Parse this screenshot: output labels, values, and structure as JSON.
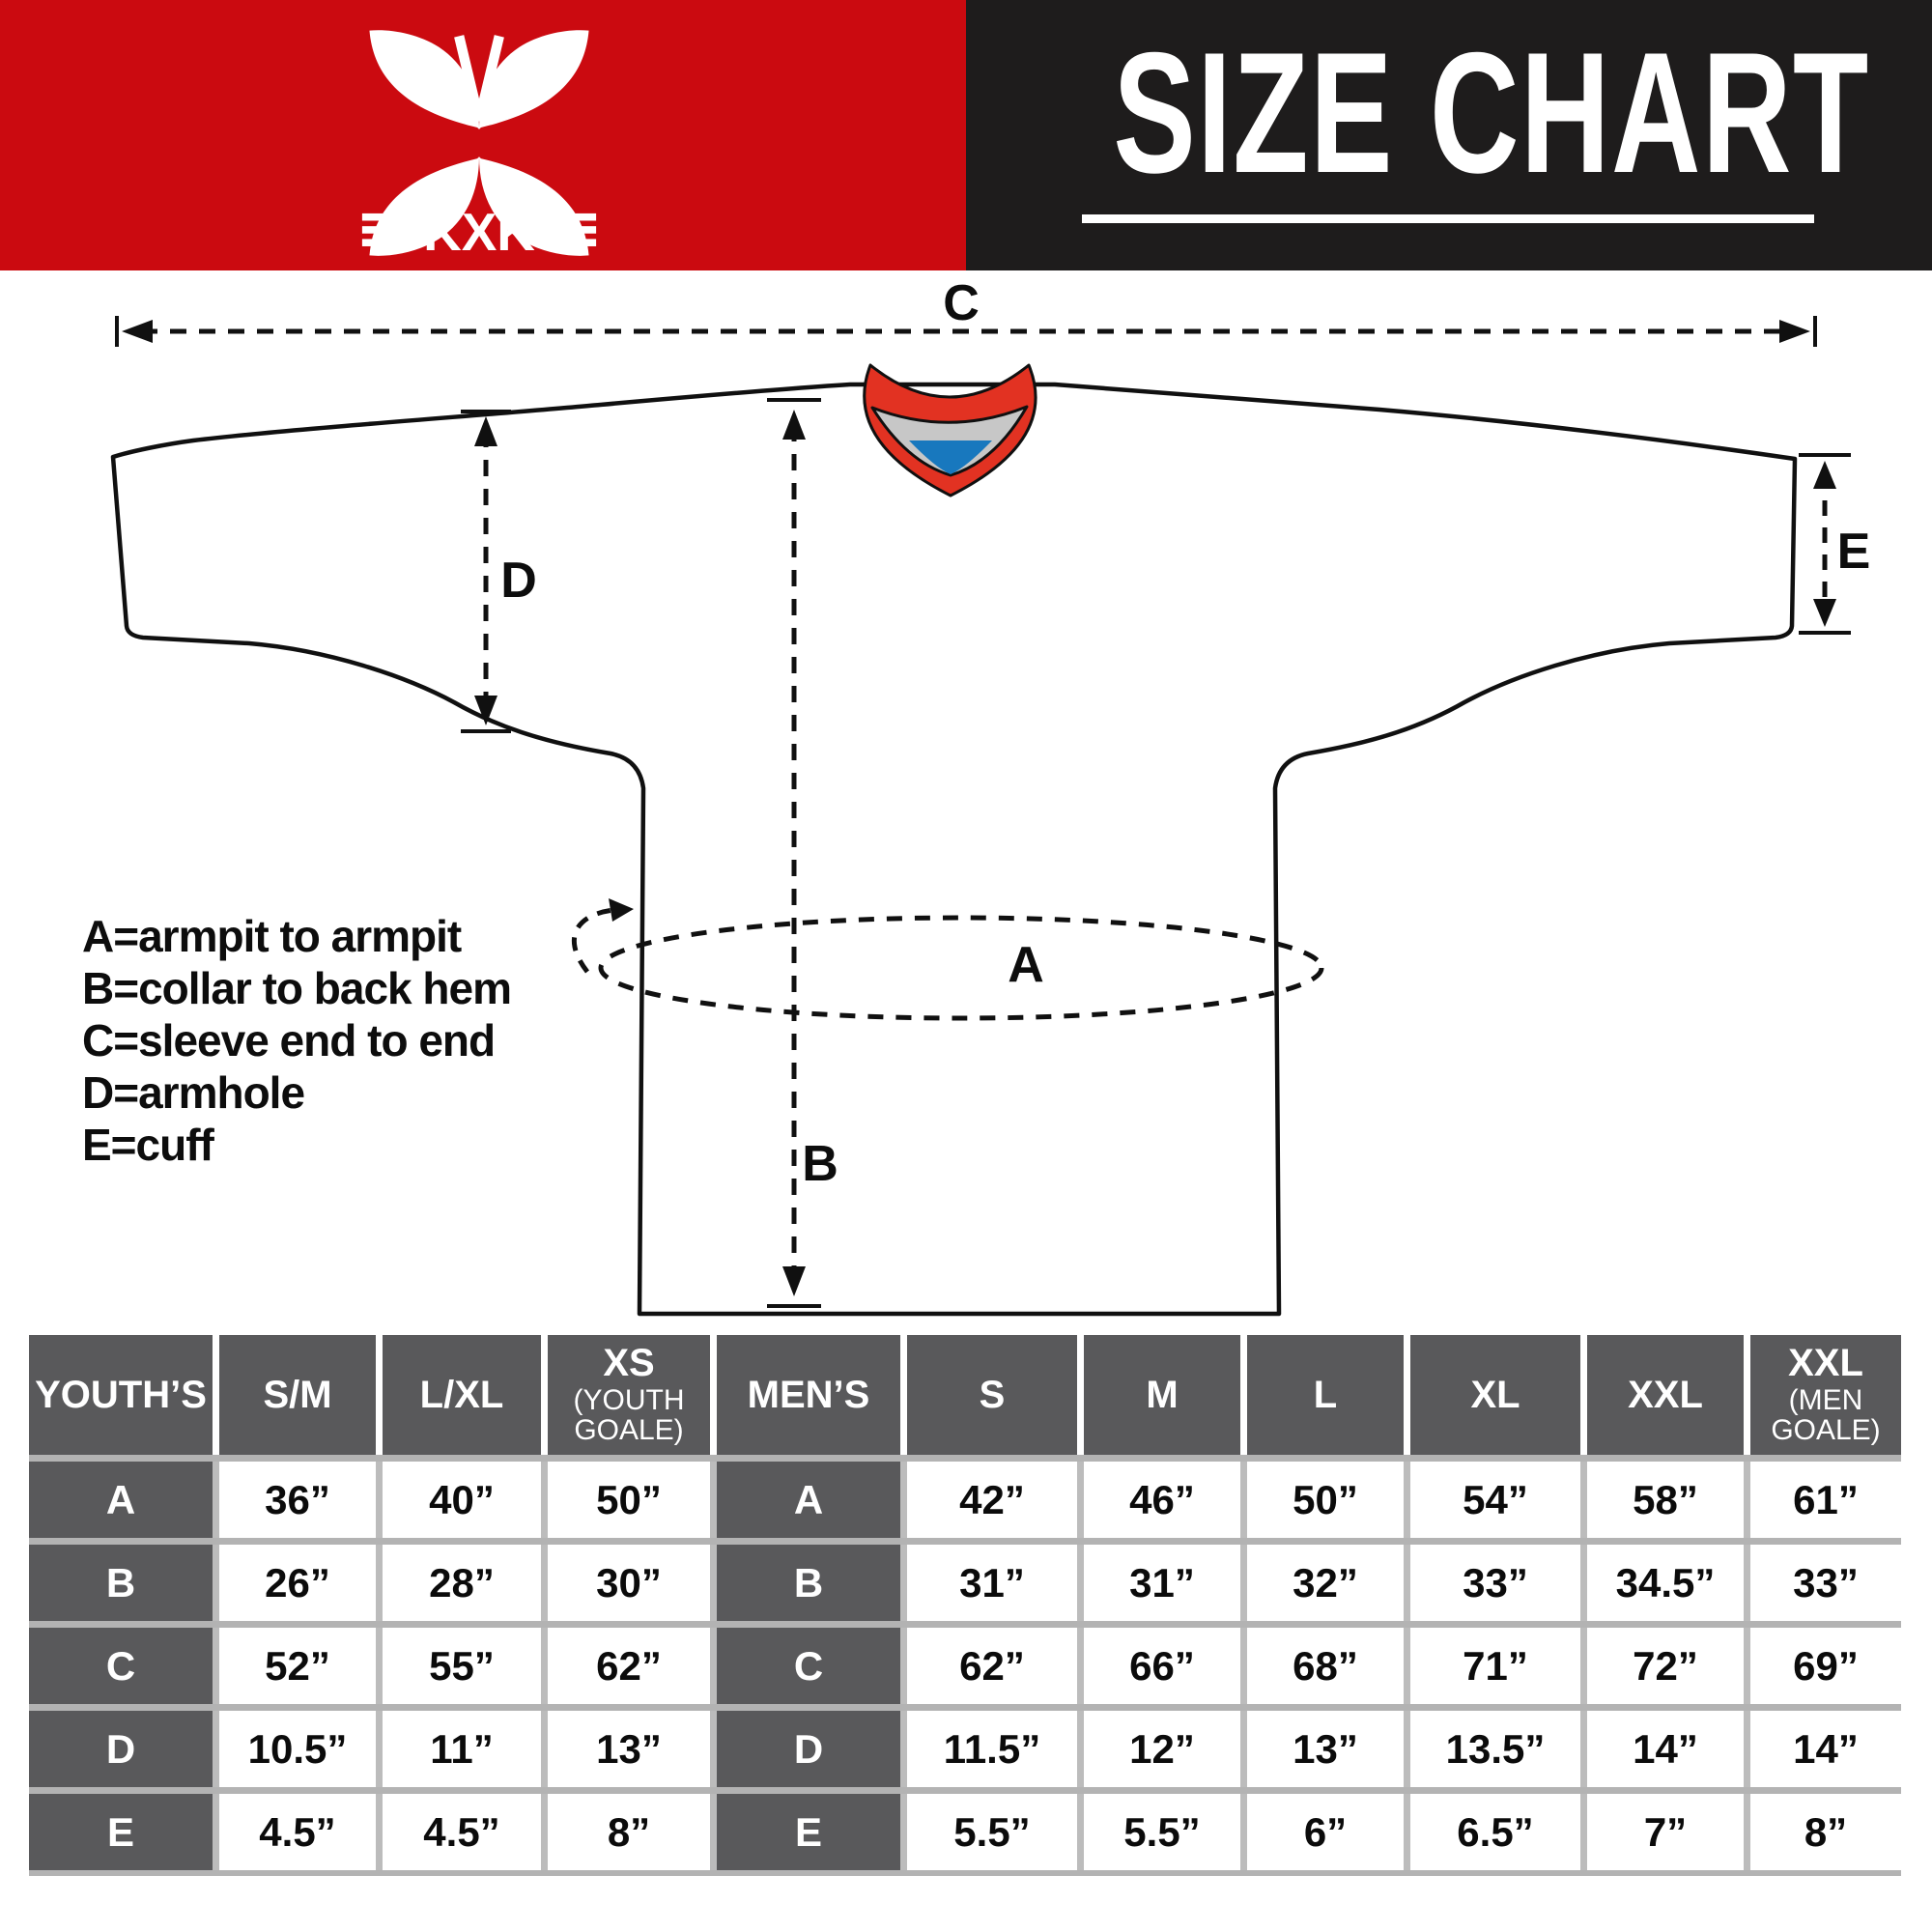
{
  "header": {
    "brand": "KXK",
    "title": "SIZE CHART",
    "red_bg": "#cb0a10",
    "black_bg": "#1e1c1c"
  },
  "legend": {
    "lines": [
      "A=armpit to armpit",
      "B=collar to back hem",
      "C=sleeve end to end",
      "D=armhole",
      "E=cuff"
    ]
  },
  "diagram": {
    "labels": {
      "A": "A",
      "B": "B",
      "C": "C",
      "D": "D",
      "E": "E"
    },
    "outline_color": "#101010",
    "collar_trim_color": "#e23222",
    "collar_inner_color": "#c7c7c7",
    "collar_accent_color": "#1878be"
  },
  "table": {
    "youth_header": "YOUTH’S",
    "mens_header": "MEN’S",
    "youth_sizes": [
      {
        "main": "S/M",
        "sub": ""
      },
      {
        "main": "L/XL",
        "sub": ""
      },
      {
        "main": "XS",
        "sub": "(YOUTH GOALE)"
      }
    ],
    "mens_sizes": [
      {
        "main": "S",
        "sub": ""
      },
      {
        "main": "M",
        "sub": ""
      },
      {
        "main": "L",
        "sub": ""
      },
      {
        "main": "XL",
        "sub": ""
      },
      {
        "main": "XXL",
        "sub": ""
      },
      {
        "main": "XXL",
        "sub": "(MEN GOALE)"
      }
    ],
    "rows": [
      {
        "label": "A",
        "youth": [
          "36”",
          "40”",
          "50”"
        ],
        "mens": [
          "42”",
          "46”",
          "50”",
          "54”",
          "58”",
          "61”"
        ]
      },
      {
        "label": "B",
        "youth": [
          "26”",
          "28”",
          "30”"
        ],
        "mens": [
          "31”",
          "31”",
          "32”",
          "33”",
          "34.5”",
          "33”"
        ]
      },
      {
        "label": "C",
        "youth": [
          "52”",
          "55”",
          "62”"
        ],
        "mens": [
          "62”",
          "66”",
          "68”",
          "71”",
          "72”",
          "69”"
        ]
      },
      {
        "label": "D",
        "youth": [
          "10.5”",
          "11”",
          "13”"
        ],
        "mens": [
          "11.5”",
          "12”",
          "13”",
          "13.5”",
          "14”",
          "14”"
        ]
      },
      {
        "label": "E",
        "youth": [
          "4.5”",
          "4.5”",
          "8”"
        ],
        "mens": [
          "5.5”",
          "5.5”",
          "6”",
          "6.5”",
          "7”",
          "8”"
        ]
      }
    ]
  }
}
